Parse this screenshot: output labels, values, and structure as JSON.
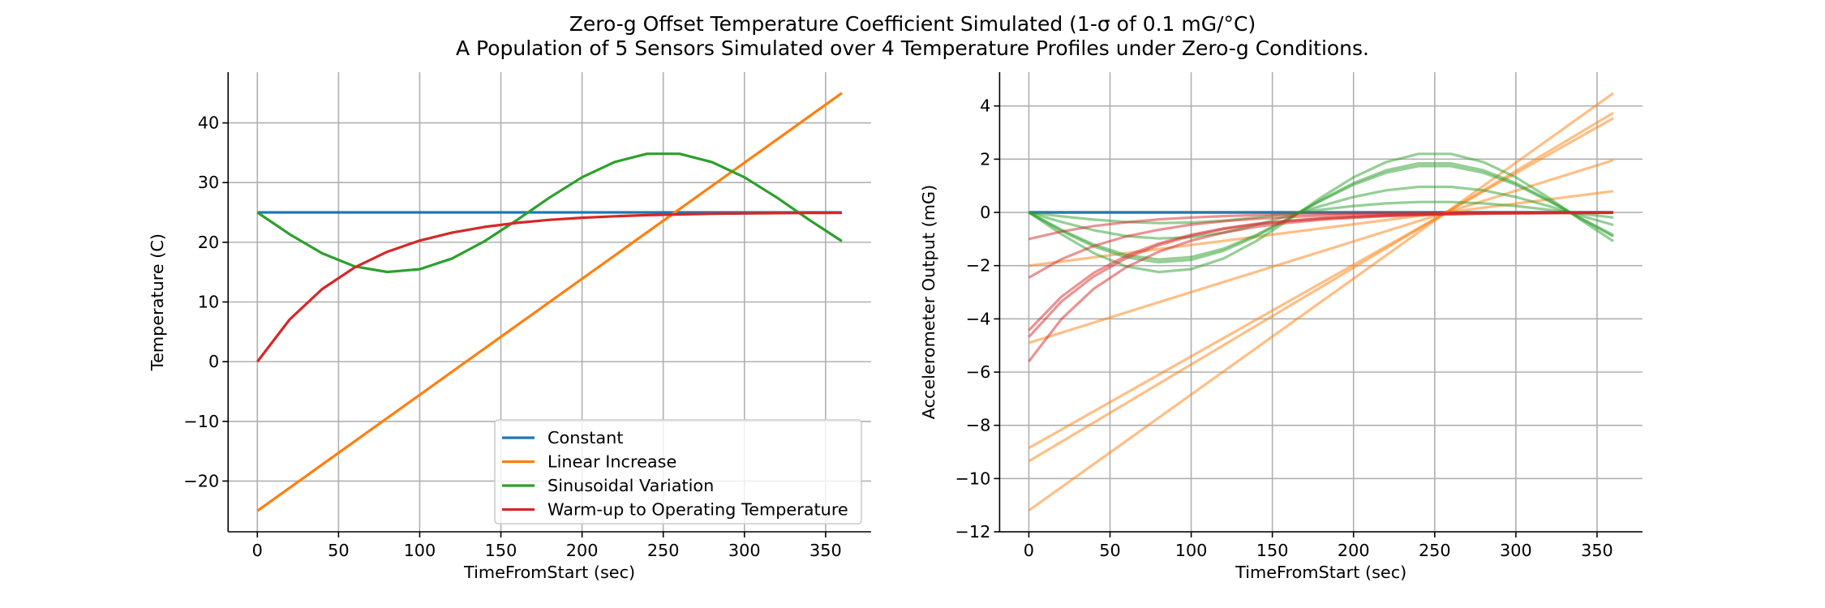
{
  "figure": {
    "title_line1": "Zero-g Offset Temperature Coefficient Simulated (1-σ of 0.1 mG/°C)",
    "title_line2": "A Population of 5 Sensors Simulated over 4 Temperature Profiles under Zero-g Conditions."
  },
  "chart_data": [
    {
      "type": "line",
      "xlabel": "TimeFromStart (sec)",
      "ylabel": "Temperature (C)",
      "xlim": [
        -18,
        378
      ],
      "ylim": [
        -28.5,
        48.5
      ],
      "xticks": [
        0,
        50,
        100,
        150,
        200,
        250,
        300,
        350
      ],
      "yticks": [
        -20,
        -10,
        0,
        10,
        20,
        30,
        40
      ],
      "grid": true,
      "legend_placement": "lower-right",
      "series": [
        {
          "name": "Constant",
          "color": "#1f77b4",
          "x": [
            0,
            360
          ],
          "y": [
            25,
            25
          ]
        },
        {
          "name": "Linear Increase",
          "color": "#ff7f0e",
          "x": [
            0,
            360
          ],
          "y": [
            -25,
            45
          ]
        },
        {
          "name": "Sinusoidal Variation",
          "color": "#2ca02c",
          "x": [
            0,
            20,
            40,
            60,
            80,
            100,
            120,
            140,
            160,
            180,
            200,
            220,
            240,
            260,
            280,
            300,
            320,
            340,
            360
          ],
          "y": [
            25,
            21.32,
            18.15,
            15.95,
            15.02,
            15.49,
            17.29,
            20.18,
            23.75,
            27.49,
            30.88,
            33.44,
            34.82,
            34.82,
            33.44,
            30.88,
            27.49,
            23.75,
            20.18
          ]
        },
        {
          "name": "Warm-up to Operating Temperature",
          "color": "#d62728",
          "x": [
            0,
            20,
            40,
            60,
            80,
            100,
            120,
            140,
            160,
            180,
            200,
            220,
            240,
            260,
            280,
            300,
            320,
            340,
            360
          ],
          "y": [
            0,
            7.09,
            12.17,
            15.8,
            18.41,
            20.28,
            21.62,
            22.58,
            23.26,
            23.76,
            24.11,
            24.36,
            24.54,
            24.67,
            24.77,
            24.83,
            24.88,
            24.91,
            24.94
          ]
        }
      ]
    },
    {
      "type": "line",
      "xlabel": "TimeFromStart (sec)",
      "ylabel": "Accelerometer Output (mG)",
      "xlim": [
        -18,
        378
      ],
      "ylim": [
        -12,
        5.27
      ],
      "xticks": [
        0,
        50,
        100,
        150,
        200,
        250,
        300,
        350
      ],
      "yticks": [
        -12,
        -10,
        -8,
        -6,
        -4,
        -2,
        0,
        2,
        4
      ],
      "grid": true,
      "series": [
        {
          "color": "#1f77b4",
          "x": [
            0,
            360
          ],
          "y": [
            0,
            0
          ]
        },
        {
          "color": "#1f77b4",
          "x": [
            0,
            360
          ],
          "y": [
            0,
            0
          ]
        },
        {
          "color": "#1f77b4",
          "x": [
            0,
            360
          ],
          "y": [
            0,
            0
          ]
        },
        {
          "color": "#1f77b4",
          "x": [
            0,
            360
          ],
          "y": [
            0,
            0
          ]
        },
        {
          "color": "#1f77b4",
          "x": [
            0,
            360
          ],
          "y": [
            0,
            0
          ]
        },
        {
          "color": "#ff7f0e",
          "x": [
            0,
            360
          ],
          "y": [
            -2.0,
            0.8
          ]
        },
        {
          "color": "#ff7f0e",
          "x": [
            0,
            360
          ],
          "y": [
            -4.9,
            1.96
          ]
        },
        {
          "color": "#ff7f0e",
          "x": [
            0,
            360
          ],
          "y": [
            -8.85,
            3.54
          ]
        },
        {
          "color": "#ff7f0e",
          "x": [
            0,
            360
          ],
          "y": [
            -9.35,
            3.74
          ]
        },
        {
          "color": "#ff7f0e",
          "x": [
            0,
            360
          ],
          "y": [
            -11.2,
            4.48
          ]
        },
        {
          "color": "#2ca02c",
          "x": [
            0,
            20,
            40,
            60,
            80,
            100,
            120,
            140,
            160,
            180,
            200,
            220,
            240,
            260,
            280,
            300,
            320,
            340,
            360
          ],
          "y": [
            0,
            -0.15,
            -0.27,
            -0.36,
            -0.4,
            -0.38,
            -0.31,
            -0.19,
            -0.05,
            0.1,
            0.24,
            0.34,
            0.39,
            0.39,
            0.34,
            0.24,
            0.1,
            -0.05,
            -0.19
          ]
        },
        {
          "color": "#2ca02c",
          "x": [
            0,
            20,
            40,
            60,
            80,
            100,
            120,
            140,
            160,
            180,
            200,
            220,
            240,
            260,
            280,
            300,
            320,
            340,
            360
          ],
          "y": [
            0,
            -0.36,
            -0.67,
            -0.89,
            -0.98,
            -0.93,
            -0.76,
            -0.47,
            -0.12,
            0.24,
            0.58,
            0.83,
            0.96,
            0.96,
            0.83,
            0.58,
            0.24,
            -0.12,
            -0.47
          ]
        },
        {
          "color": "#2ca02c",
          "x": [
            0,
            20,
            40,
            60,
            80,
            100,
            120,
            140,
            160,
            180,
            200,
            220,
            240,
            260,
            280,
            300,
            320,
            340,
            360
          ],
          "y": [
            0,
            -0.65,
            -1.21,
            -1.6,
            -1.77,
            -1.68,
            -1.36,
            -0.85,
            -0.22,
            0.44,
            1.04,
            1.49,
            1.74,
            1.74,
            1.49,
            1.04,
            0.44,
            -0.22,
            -0.85
          ]
        },
        {
          "color": "#2ca02c",
          "x": [
            0,
            20,
            40,
            60,
            80,
            100,
            120,
            140,
            160,
            180,
            200,
            220,
            240,
            260,
            280,
            300,
            320,
            340,
            360
          ],
          "y": [
            0,
            -0.69,
            -1.28,
            -1.69,
            -1.87,
            -1.78,
            -1.44,
            -0.9,
            -0.23,
            0.47,
            1.1,
            1.58,
            1.84,
            1.84,
            1.58,
            1.1,
            0.47,
            -0.23,
            -0.9
          ]
        },
        {
          "color": "#2ca02c",
          "x": [
            0,
            20,
            40,
            60,
            80,
            100,
            120,
            140,
            160,
            180,
            200,
            220,
            240,
            260,
            280,
            300,
            320,
            340,
            360
          ],
          "y": [
            0,
            -0.82,
            -1.53,
            -2.03,
            -2.24,
            -2.13,
            -1.73,
            -1.08,
            -0.28,
            0.56,
            1.32,
            1.89,
            2.2,
            2.2,
            1.89,
            1.32,
            0.56,
            -0.28,
            -1.08
          ]
        },
        {
          "color": "#d62728",
          "x": [
            0,
            20,
            40,
            60,
            80,
            100,
            120,
            140,
            160,
            180,
            200,
            220,
            240,
            260,
            280,
            300,
            320,
            340,
            360
          ],
          "y": [
            -1.0,
            -0.72,
            -0.51,
            -0.37,
            -0.26,
            -0.19,
            -0.14,
            -0.1,
            -0.07,
            -0.05,
            -0.04,
            -0.03,
            -0.02,
            -0.01,
            -0.01,
            -0.01,
            0,
            0,
            0
          ]
        },
        {
          "color": "#d62728",
          "x": [
            0,
            20,
            40,
            60,
            80,
            100,
            120,
            140,
            160,
            180,
            200,
            220,
            240,
            260,
            280,
            300,
            320,
            340,
            360
          ],
          "y": [
            -2.45,
            -1.76,
            -1.26,
            -0.9,
            -0.65,
            -0.46,
            -0.33,
            -0.24,
            -0.17,
            -0.12,
            -0.09,
            -0.06,
            -0.05,
            -0.03,
            -0.02,
            -0.02,
            -0.01,
            -0.01,
            -0.01
          ]
        },
        {
          "color": "#d62728",
          "x": [
            0,
            20,
            40,
            60,
            80,
            100,
            120,
            140,
            160,
            180,
            200,
            220,
            240,
            260,
            280,
            300,
            320,
            340,
            360
          ],
          "y": [
            -4.43,
            -3.17,
            -2.27,
            -1.63,
            -1.17,
            -0.84,
            -0.6,
            -0.43,
            -0.31,
            -0.22,
            -0.16,
            -0.11,
            -0.08,
            -0.06,
            -0.04,
            -0.03,
            -0.02,
            -0.02,
            -0.01
          ]
        },
        {
          "color": "#d62728",
          "x": [
            0,
            20,
            40,
            60,
            80,
            100,
            120,
            140,
            160,
            180,
            200,
            220,
            240,
            260,
            280,
            300,
            320,
            340,
            360
          ],
          "y": [
            -4.68,
            -3.35,
            -2.4,
            -1.72,
            -1.23,
            -0.88,
            -0.63,
            -0.45,
            -0.33,
            -0.23,
            -0.17,
            -0.12,
            -0.09,
            -0.06,
            -0.04,
            -0.03,
            -0.02,
            -0.02,
            -0.01
          ]
        },
        {
          "color": "#d62728",
          "x": [
            0,
            20,
            40,
            60,
            80,
            100,
            120,
            140,
            160,
            180,
            200,
            220,
            240,
            260,
            280,
            300,
            320,
            340,
            360
          ],
          "y": [
            -5.6,
            -4.01,
            -2.87,
            -2.06,
            -1.48,
            -1.06,
            -0.76,
            -0.54,
            -0.39,
            -0.28,
            -0.2,
            -0.14,
            -0.1,
            -0.07,
            -0.05,
            -0.04,
            -0.03,
            -0.02,
            -0.01
          ]
        }
      ]
    }
  ]
}
